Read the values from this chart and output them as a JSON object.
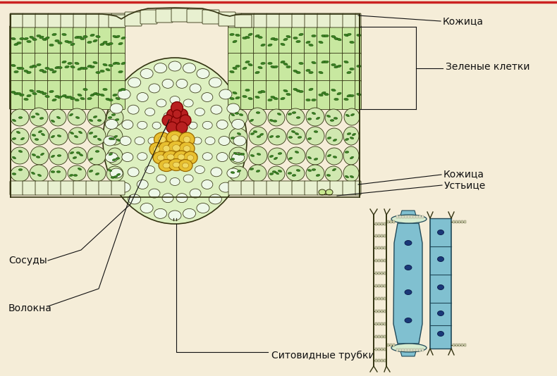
{
  "bg_color": "#f5edd8",
  "fig_width": 7.9,
  "fig_height": 5.34,
  "dpi": 100,
  "labels": {
    "kozhitsa_top": "Кожица",
    "zelenye_kletki": "Зеленые клетки",
    "kozhitsa_bottom": "Кожица",
    "ustyitse": "Устьице",
    "sosudy": "Сосуды",
    "volokna": "Волокна",
    "sitovid": "Ситовидные трубки"
  },
  "outline_color": "#333311",
  "ep_fill": "#e8f0d0",
  "palisade_fill": "#c8e8a0",
  "spongy_fill": "#d0e8b0",
  "vein_sheath_fill": "#ddf0c0",
  "vein_inner_fill": "#eef8e8",
  "xylem_fill": "#b82020",
  "xylem_edge": "#7a0000",
  "phloem_fill": "#e8c030",
  "phloem_edge": "#9a6800",
  "chloroplast_fill": "#3a8020",
  "chloroplast_edge": "#1a5010",
  "sieve_blue": "#80c0d0",
  "sieve_dark": "#204858",
  "line_color": "#111111",
  "text_color": "#111111",
  "font_size": 10
}
